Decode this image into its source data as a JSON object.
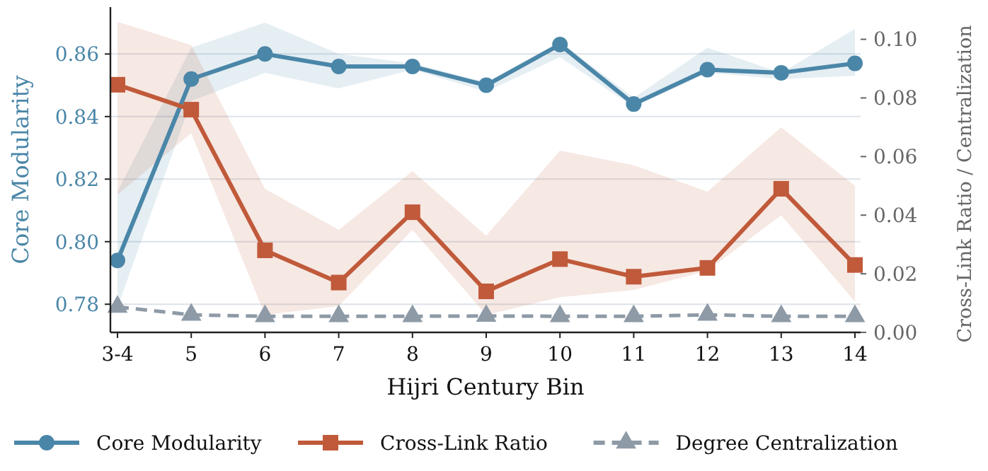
{
  "chart_data": {
    "type": "line",
    "xlabel": "Hijri Century Bin",
    "ylabel": "Core Modularity",
    "y2label": "Cross-Link Ratio / Centralization",
    "categories": [
      "3-4",
      "5",
      "6",
      "7",
      "8",
      "9",
      "10",
      "11",
      "12",
      "13",
      "14"
    ],
    "ylim": [
      0.771,
      0.875
    ],
    "yticks": [
      0.78,
      {
        "value": 0.8,
        "label": "0.80"
      },
      0.82,
      0.84,
      0.86
    ],
    "y2lim": [
      0,
      0.111
    ],
    "y2ticks": [
      {
        "value": 0,
        "label": "0.00"
      },
      0.02,
      0.04,
      0.06,
      0.08,
      {
        "value": 0.1,
        "label": "0.10"
      }
    ],
    "grid": "y",
    "legend": "bottom",
    "series": [
      {
        "name": "Core Modularity",
        "color": "#4a86a8",
        "marker": "circle",
        "line_style": "solid",
        "values": [
          0.794,
          0.852,
          0.86,
          0.856,
          0.856,
          0.85,
          0.863,
          0.844,
          0.855,
          0.854,
          0.857
        ],
        "lower": [
          0.779,
          0.845,
          0.854,
          0.849,
          0.855,
          0.848,
          0.859,
          0.843,
          0.854,
          0.852,
          0.853
        ],
        "upper": [
          0.816,
          0.862,
          0.87,
          0.86,
          0.857,
          0.851,
          0.864,
          0.846,
          0.862,
          0.854,
          0.868
        ]
      },
      {
        "name": "Cross-Link Ratio",
        "color": "#c05a3a",
        "marker": "square",
        "line_style": "solid",
        "axis": "y2",
        "values": [
          0.0845,
          0.076,
          0.028,
          0.017,
          0.041,
          0.014,
          0.025,
          0.019,
          0.022,
          0.049,
          0.023
        ],
        "lower": [
          0.047,
          0.068,
          0.006,
          0.009,
          0.035,
          0.006,
          0.012,
          0.0145,
          0.021,
          0.04,
          0.0105
        ],
        "upper": [
          0.106,
          0.098,
          0.049,
          0.035,
          0.055,
          0.033,
          0.062,
          0.057,
          0.048,
          0.07,
          0.05
        ]
      },
      {
        "name": "Degree Centralization",
        "color": "#8e9aa6",
        "marker": "triangle",
        "line_style": "dashed",
        "axis": "y2",
        "values": [
          0.0087,
          0.006,
          0.0055,
          0.0055,
          0.0055,
          0.0056,
          0.0055,
          0.0055,
          0.006,
          0.0055,
          0.0055
        ]
      }
    ]
  }
}
